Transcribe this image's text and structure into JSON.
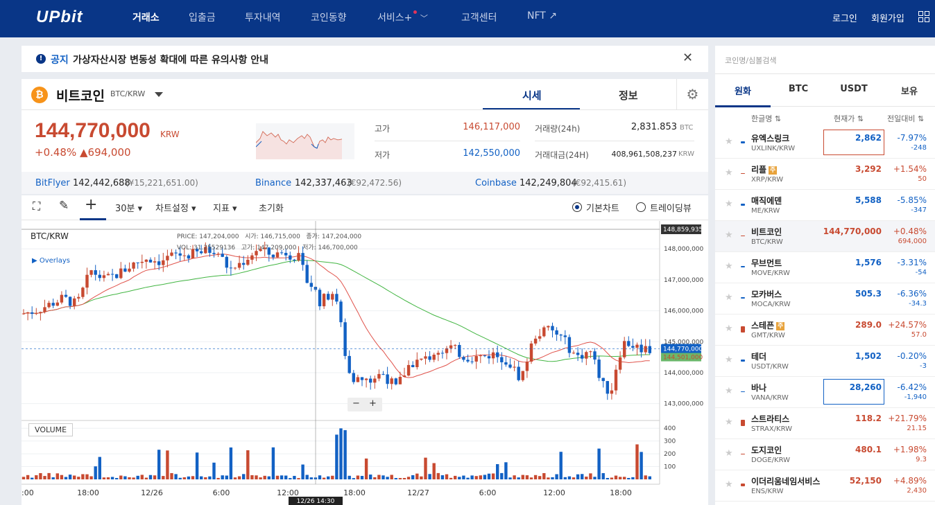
{
  "header": {
    "logo": "UPbit",
    "nav": [
      "거래소",
      "입출금",
      "투자내역",
      "코인동향",
      "서비스",
      "고객센터",
      "NFT ↗"
    ],
    "service_plus": "+",
    "service_chevron": "﹀",
    "login": "로그인",
    "signup": "회원가입"
  },
  "notice": {
    "icon": "!",
    "tag": "공지",
    "text": "가상자산시장 변동성 확대에 따른 유의사항 안내",
    "close": "✕"
  },
  "coin": {
    "icon": "₿",
    "name": "비트코인",
    "pair": "BTC/KRW",
    "tabs": [
      "시세",
      "정보"
    ],
    "gear": "⚙",
    "price": "144,770,000",
    "unit": "KRW",
    "change": "+0.48% ▲694,000",
    "high_label": "고가",
    "high": "146,117,000",
    "low_label": "저가",
    "low": "142,550,000",
    "vol_label": "거래량(24h)",
    "vol": "2,831.853",
    "vol_unit": "BTC",
    "amt_label": "거래대금(24H)",
    "amt": "408,961,508,237",
    "amt_unit": "KRW",
    "exchanges": [
      {
        "name": "BitFlyer",
        "price": "142,442,688",
        "sub": "(¥15,221,651.00)"
      },
      {
        "name": "Binance",
        "price": "142,337,463",
        "sub": "(€92,472.56)"
      },
      {
        "name": "Coinbase",
        "price": "142,249,804",
        "sub": "(€92,415.61)"
      }
    ]
  },
  "chart_toolbar": {
    "fullscreen": "⛶",
    "draw": "✎",
    "cross": "+",
    "interval": "30분 ▾",
    "settings": "차트설정 ▾",
    "indicator": "지표 ▾",
    "reset": "초기화",
    "basic": "기본차트",
    "tradingview": "트레이딩뷰"
  },
  "chart_data": {
    "type": "candlestick",
    "pair": "BTC/KRW",
    "overlays": "▶ Overlays",
    "volume_label": "VOLUME",
    "ohlc_labels": {
      "price": "PRICE:",
      "price_v": "147,204,000",
      "open": "시가:",
      "open_v": "146,715,000",
      "close": "종가:",
      "close_v": "147,204,000",
      "vol": "VOL:",
      "vol_v": "31.25529136",
      "high": "고가:",
      "high_v": "147,209,000",
      "low": "저가:",
      "low_v": "146,700,000"
    },
    "yticks": [
      "148,000,000",
      "147,000,000",
      "146,000,000",
      "145,000,000",
      "144,000,000",
      "143,000,000"
    ],
    "ytick_values": [
      148000000,
      147000000,
      146000000,
      145000000,
      144000000,
      143000000
    ],
    "top_label": "148,859,935",
    "last_price": "144,770,000",
    "ma_label": "144,501,000",
    "vticks": [
      "400",
      "300",
      "200",
      "100"
    ],
    "vtick_values": [
      400,
      300,
      200,
      100
    ],
    "xticks": [
      ":00",
      "18:00",
      "12/26",
      "6:00",
      "12:00",
      "18:00",
      "12/27",
      "6:00",
      "12:00",
      "18:00"
    ],
    "cross_x": "12/26 14:30",
    "ylim": [
      142500000,
      148900000
    ],
    "vlim": [
      0,
      450
    ],
    "zoom_minus": "−",
    "zoom_plus": "+"
  },
  "sidebar": {
    "search_placeholder": "코인명/심볼검색",
    "tabs": [
      "원화",
      "BTC",
      "USDT",
      "보유"
    ],
    "cols": [
      "한글명 ⇅",
      "현재가 ⇅",
      "전일대비 ⇅"
    ],
    "rows": [
      {
        "name": "유엑스링크",
        "sym": "UXLINK/KRW",
        "price": "2,862",
        "chg": "-7.97%",
        "amt": "-248",
        "dir": "down",
        "badge": "",
        "box": "red"
      },
      {
        "name": "리플",
        "sym": "XRP/KRW",
        "price": "3,292",
        "chg": "+1.54%",
        "amt": "50",
        "dir": "up",
        "badge": "주",
        "box": ""
      },
      {
        "name": "매직에덴",
        "sym": "ME/KRW",
        "price": "5,588",
        "chg": "-5.85%",
        "amt": "-347",
        "dir": "down",
        "badge": "",
        "box": ""
      },
      {
        "name": "비트코인",
        "sym": "BTC/KRW",
        "price": "144,770,000",
        "chg": "+0.48%",
        "amt": "694,000",
        "dir": "up",
        "badge": "",
        "box": ""
      },
      {
        "name": "무브먼트",
        "sym": "MOVE/KRW",
        "price": "1,576",
        "chg": "-3.31%",
        "amt": "-54",
        "dir": "down",
        "badge": "",
        "box": ""
      },
      {
        "name": "모카버스",
        "sym": "MOCA/KRW",
        "price": "505.3",
        "chg": "-6.36%",
        "amt": "-34.3",
        "dir": "down",
        "badge": "",
        "box": ""
      },
      {
        "name": "스테픈",
        "sym": "GMT/KRW",
        "price": "289.0",
        "chg": "+24.57%",
        "amt": "57.0",
        "dir": "up",
        "badge": "주",
        "box": ""
      },
      {
        "name": "테더",
        "sym": "USDT/KRW",
        "price": "1,502",
        "chg": "-0.20%",
        "amt": "-3",
        "dir": "down",
        "badge": "",
        "box": ""
      },
      {
        "name": "바나",
        "sym": "VANA/KRW",
        "price": "28,260",
        "chg": "-6.42%",
        "amt": "-1,940",
        "dir": "down",
        "badge": "",
        "box": "blue"
      },
      {
        "name": "스트라티스",
        "sym": "STRAX/KRW",
        "price": "118.2",
        "chg": "+21.79%",
        "amt": "21.15",
        "dir": "up",
        "badge": "",
        "box": ""
      },
      {
        "name": "도지코인",
        "sym": "DOGE/KRW",
        "price": "480.1",
        "chg": "+1.98%",
        "amt": "9.3",
        "dir": "up",
        "badge": "",
        "box": ""
      },
      {
        "name": "이더리움네임서비스",
        "sym": "ENS/KRW",
        "price": "52,150",
        "chg": "+4.89%",
        "amt": "2,430",
        "dir": "up",
        "badge": "",
        "box": ""
      }
    ]
  },
  "colors": {
    "up": "#c84a31",
    "down": "#1261c4",
    "brand": "#093687",
    "ma1": "#e0524a",
    "ma2": "#41b541"
  }
}
